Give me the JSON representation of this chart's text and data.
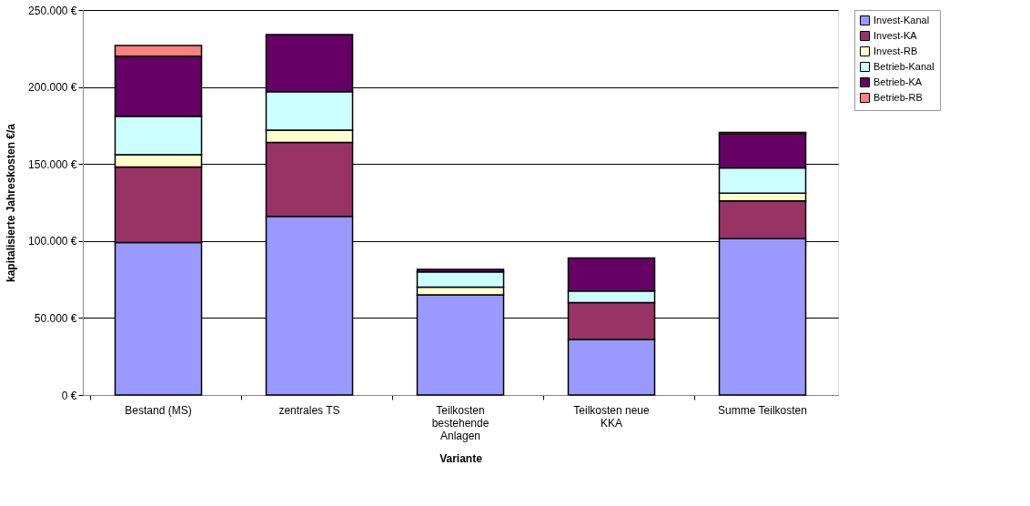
{
  "chart_data": {
    "type": "bar",
    "stacked": true,
    "xlabel": "Variante",
    "ylabel": "kapitalisierte Jahreskosten €/a",
    "categories": [
      "Bestand (MS)",
      "zentrales TS",
      "Teilkosten bestehende Anlagen",
      "Teilkosten neue KKA",
      "Summe Teilkosten"
    ],
    "series": [
      {
        "name": "Invest-Kanal",
        "color": "#9999ff",
        "values": [
          99000,
          116000,
          65000,
          36000,
          101500
        ]
      },
      {
        "name": "Invest-KA",
        "color": "#993366",
        "values": [
          49000,
          48000,
          null,
          24000,
          24500
        ]
      },
      {
        "name": "Invest-RB",
        "color": "#ffffcc",
        "values": [
          8000,
          8000,
          5000,
          null,
          5000
        ]
      },
      {
        "name": "Betrieb-Kanal",
        "color": "#ccffff",
        "values": [
          25000,
          25000,
          10000,
          7500,
          16500
        ]
      },
      {
        "name": "Betrieb-KA",
        "color": "#660066",
        "values": [
          39000,
          37000,
          1500,
          21500,
          22000
        ]
      },
      {
        "name": "Betrieb-RB",
        "color": "#ff8080",
        "values": [
          7000,
          null,
          null,
          null,
          1000
        ]
      }
    ],
    "ylim": [
      0,
      250000
    ],
    "yticks": [
      {
        "value": 0,
        "label": "0 €"
      },
      {
        "value": 50000,
        "label": "50.000 €"
      },
      {
        "value": 100000,
        "label": "100.000 €"
      },
      {
        "value": 150000,
        "label": "150.000 €"
      },
      {
        "value": 200000,
        "label": "200.000 €"
      },
      {
        "value": 250000,
        "label": "250.000 €"
      }
    ],
    "grid": "y",
    "legend": "right"
  }
}
